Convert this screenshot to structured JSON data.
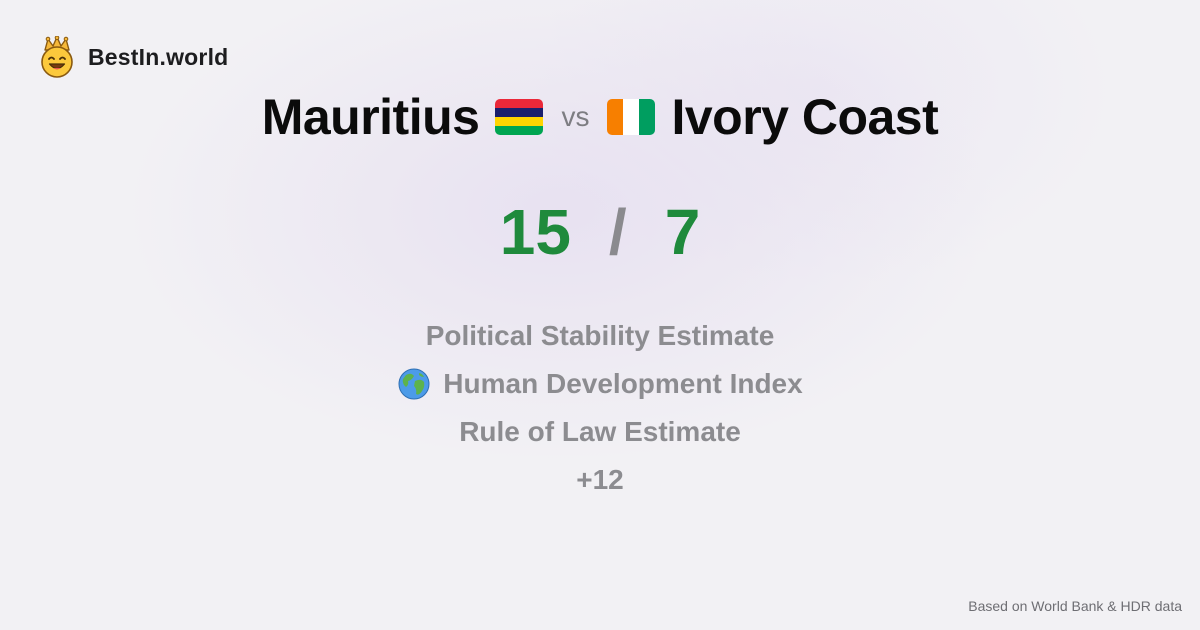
{
  "brand": {
    "name": "BestIn.world",
    "logo_icon": "crown-smiley-icon"
  },
  "comparison": {
    "left": {
      "name": "Mauritius",
      "flag_icon": "mauritius-flag-icon",
      "flag_colors": [
        "#EA2839",
        "#1A206D",
        "#FFD500",
        "#00A551"
      ]
    },
    "vs_label": "vs",
    "right": {
      "name": "Ivory Coast",
      "flag_icon": "ivory-coast-flag-icon",
      "flag_colors": [
        "#F77F00",
        "#FFFFFF",
        "#009E60"
      ]
    }
  },
  "score": {
    "left": "15",
    "separator": "/",
    "right": "7",
    "color": "#1F8A3C"
  },
  "metrics": [
    {
      "label": "Political Stability Estimate"
    },
    {
      "label": "Human Development Index",
      "icon": "globe-icon"
    },
    {
      "label": "Rule of Law Estimate"
    },
    {
      "label": "+12"
    }
  ],
  "footer": {
    "note": "Based on World Bank & HDR data"
  }
}
